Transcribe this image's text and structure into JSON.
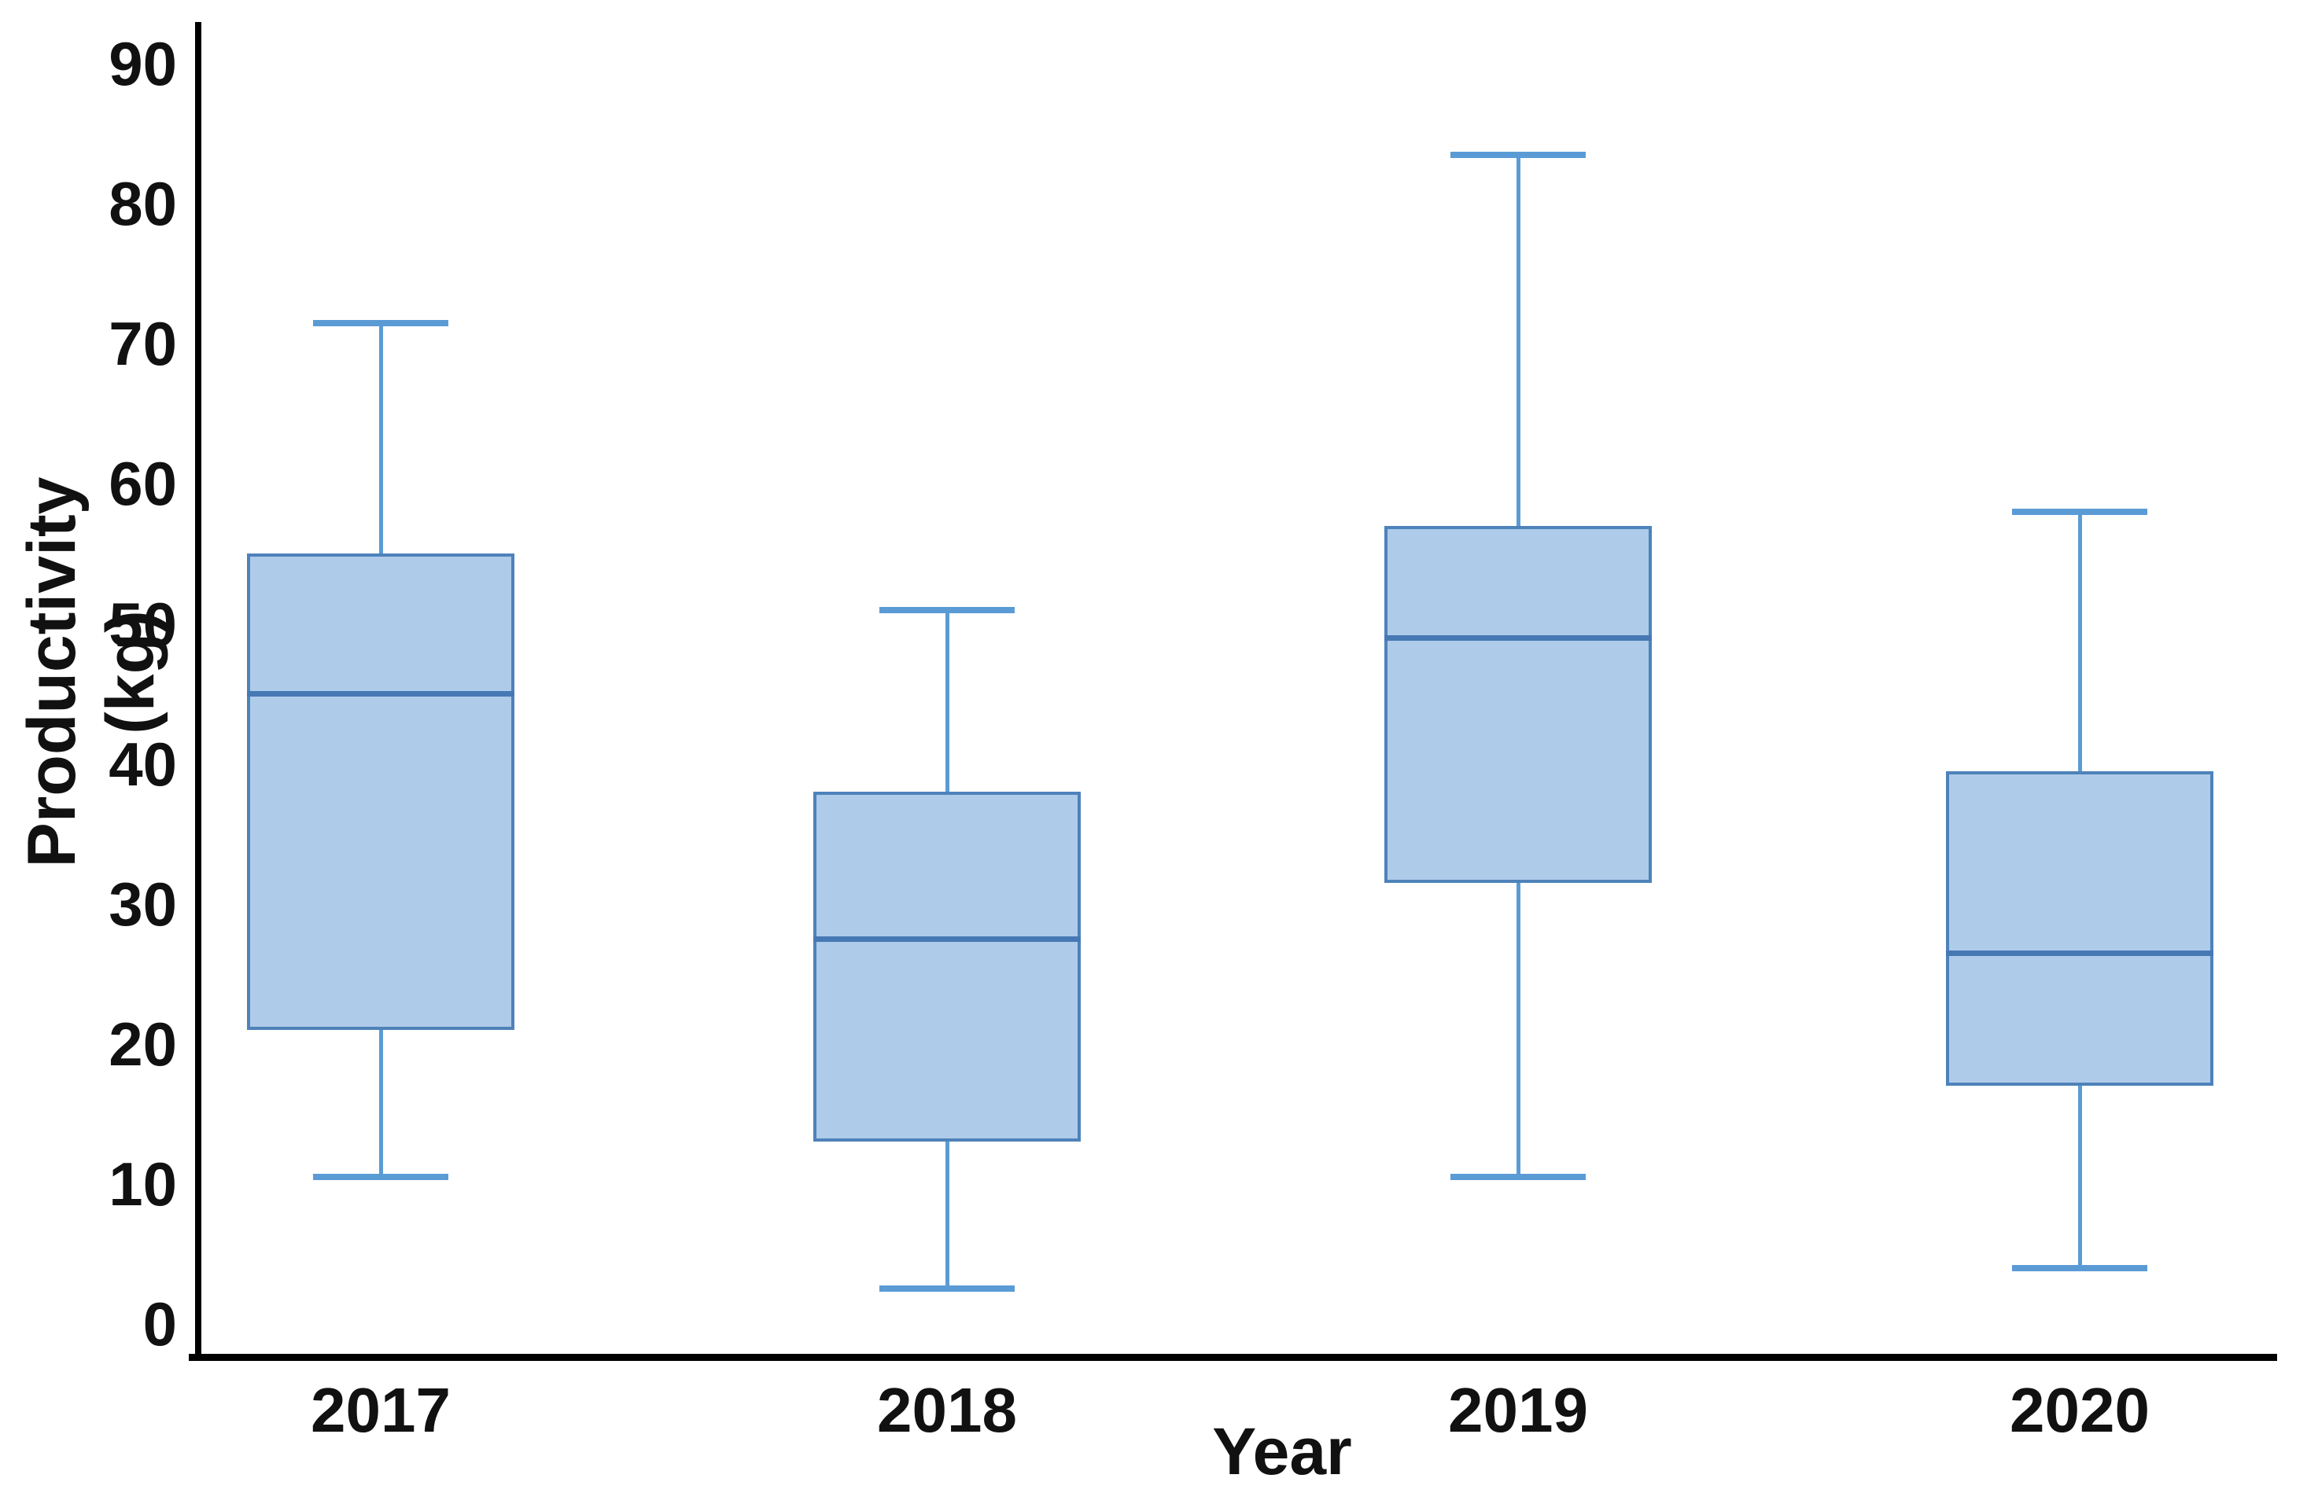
{
  "chart_data": {
    "type": "boxplot",
    "title": "",
    "xlabel": "Year",
    "ylabel": "Productivity (kg)",
    "categories": [
      "2017",
      "2018",
      "2019",
      "2020"
    ],
    "yticks": [
      0,
      10,
      20,
      30,
      40,
      50,
      60,
      70,
      80,
      90
    ],
    "ylim": [
      0,
      93
    ],
    "grid": false,
    "legend": "none",
    "series": [
      {
        "name": "2017",
        "min": 10.5,
        "q1": 21,
        "median": 45,
        "q3": 55,
        "max": 71.5
      },
      {
        "name": "2018",
        "min": 2.5,
        "q1": 13,
        "median": 27.5,
        "q3": 38,
        "max": 51
      },
      {
        "name": "2019",
        "min": 10.5,
        "q1": 31.5,
        "median": 49,
        "q3": 57,
        "max": 83.5
      },
      {
        "name": "2020",
        "min": 4,
        "q1": 17,
        "median": 26.5,
        "q3": 39.5,
        "max": 58
      }
    ],
    "colors": {
      "box_fill": "#AECBE9",
      "box_border": "#4E82BA",
      "median_line": "#4678B4",
      "whisker": "#5B9BD5",
      "axis": "#000000",
      "text": "#111111"
    }
  }
}
